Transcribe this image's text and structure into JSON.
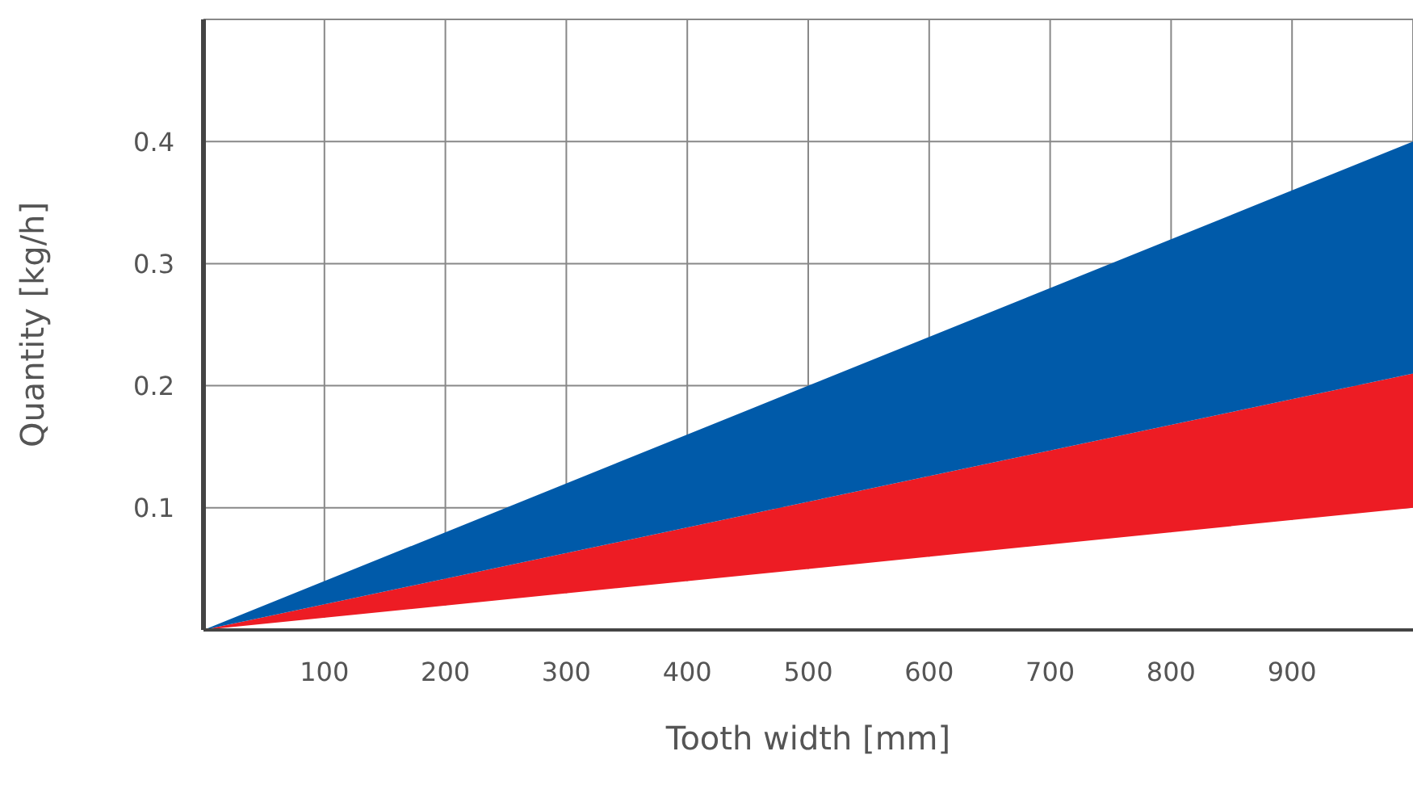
{
  "chart_data": {
    "type": "area",
    "stacked": true,
    "xlabel": "Tooth width [mm]",
    "ylabel": "Quantity [kg/h]",
    "x": [
      0,
      500,
      1000
    ],
    "series": [
      {
        "color": "#ffffff",
        "values": [
          0,
          0.05,
          0.1
        ]
      },
      {
        "color": "#ed1c24",
        "values": [
          0,
          0.055,
          0.11
        ]
      },
      {
        "color": "#005aa9",
        "values": [
          0,
          0.095,
          0.19
        ]
      }
    ],
    "xlim": [
      0,
      1000
    ],
    "ylim": [
      0,
      0.5
    ],
    "xticks": [
      100,
      200,
      300,
      400,
      500,
      600,
      700,
      800,
      900
    ],
    "yticks": [
      0.1,
      0.2,
      0.3,
      0.4
    ],
    "grid": true,
    "legend": false
  }
}
